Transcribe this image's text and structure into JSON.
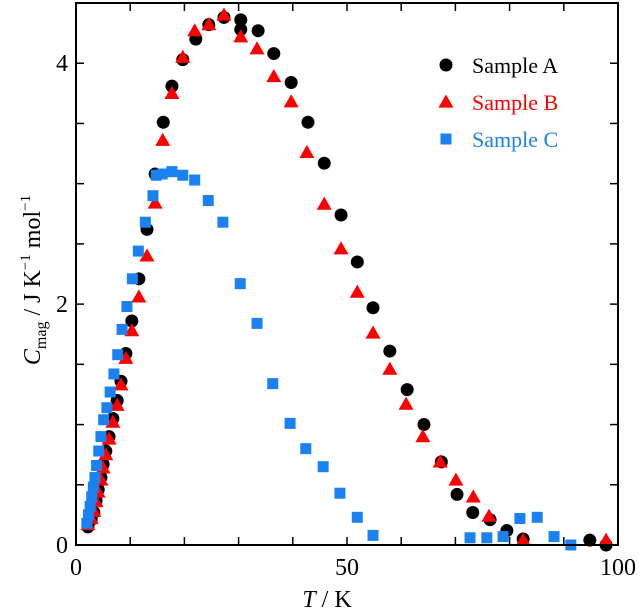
{
  "chart_data": {
    "type": "scatter",
    "title": "",
    "xlabel": {
      "italic": "T",
      "rest": " / K"
    },
    "ylabel": {
      "symbol": "C",
      "subscript": "mag",
      "unit_main": " / J K",
      "sup1": "−1",
      "unit_mol": " mol",
      "sup2": "−1"
    },
    "xlim": [
      0,
      100
    ],
    "ylim": [
      0,
      4.5
    ],
    "x_ticks": [
      0,
      50,
      100
    ],
    "x_minor_step": 10,
    "y_ticks": [
      0,
      2,
      4
    ],
    "y_minor_step": 0.5,
    "grid": false,
    "legend_position": "top-right",
    "series": [
      {
        "name": "Sample A",
        "marker": "circle",
        "color": "#000000",
        "points": [
          [
            2.2,
            0.15
          ],
          [
            2.8,
            0.21
          ],
          [
            3.3,
            0.27
          ],
          [
            3.7,
            0.37
          ],
          [
            4.1,
            0.46
          ],
          [
            4.6,
            0.56
          ],
          [
            5.0,
            0.67
          ],
          [
            5.5,
            0.78
          ],
          [
            6.1,
            0.9
          ],
          [
            6.8,
            1.05
          ],
          [
            7.6,
            1.2
          ],
          [
            8.3,
            1.36
          ],
          [
            9.2,
            1.59
          ],
          [
            10.3,
            1.86
          ],
          [
            11.6,
            2.21
          ],
          [
            13.1,
            2.62
          ],
          [
            14.6,
            3.08
          ],
          [
            16.1,
            3.51
          ],
          [
            17.7,
            3.81
          ],
          [
            19.7,
            4.03
          ],
          [
            22.1,
            4.2
          ],
          [
            24.5,
            4.32
          ],
          [
            27.3,
            4.38
          ],
          [
            30.4,
            4.36
          ],
          [
            30.4,
            4.28
          ],
          [
            33.6,
            4.27
          ],
          [
            36.5,
            4.08
          ],
          [
            39.7,
            3.84
          ],
          [
            42.8,
            3.51
          ],
          [
            45.8,
            3.17
          ],
          [
            48.9,
            2.74
          ],
          [
            51.9,
            2.35
          ],
          [
            54.8,
            1.97
          ],
          [
            57.9,
            1.61
          ],
          [
            61.1,
            1.29
          ],
          [
            64.2,
            1.0
          ],
          [
            67.4,
            0.69
          ],
          [
            70.3,
            0.42
          ],
          [
            73.2,
            0.27
          ],
          [
            76.4,
            0.21
          ],
          [
            79.5,
            0.12
          ],
          [
            82.5,
            0.05
          ],
          [
            94.8,
            0.04
          ],
          [
            97.8,
            0.0
          ]
        ]
      },
      {
        "name": "Sample B",
        "marker": "triangle",
        "color": "#ff0000",
        "points": [
          [
            2.2,
            0.17
          ],
          [
            2.8,
            0.22
          ],
          [
            3.3,
            0.28
          ],
          [
            3.7,
            0.36
          ],
          [
            4.1,
            0.44
          ],
          [
            4.6,
            0.54
          ],
          [
            5.0,
            0.64
          ],
          [
            5.5,
            0.75
          ],
          [
            6.1,
            0.88
          ],
          [
            6.8,
            1.02
          ],
          [
            7.6,
            1.16
          ],
          [
            8.3,
            1.33
          ],
          [
            9.2,
            1.55
          ],
          [
            10.3,
            1.78
          ],
          [
            11.6,
            2.06
          ],
          [
            13.1,
            2.4
          ],
          [
            14.6,
            2.84
          ],
          [
            16.0,
            3.36
          ],
          [
            17.7,
            3.75
          ],
          [
            19.7,
            4.05
          ],
          [
            21.9,
            4.27
          ],
          [
            24.5,
            4.32
          ],
          [
            27.3,
            4.4
          ],
          [
            30.4,
            4.22
          ],
          [
            33.4,
            4.12
          ],
          [
            36.5,
            3.89
          ],
          [
            39.7,
            3.68
          ],
          [
            42.6,
            3.26
          ],
          [
            45.8,
            2.83
          ],
          [
            48.9,
            2.46
          ],
          [
            51.9,
            2.1
          ],
          [
            54.8,
            1.76
          ],
          [
            57.9,
            1.46
          ],
          [
            60.9,
            1.17
          ],
          [
            64.0,
            0.9
          ],
          [
            67.2,
            0.69
          ],
          [
            70.1,
            0.54
          ],
          [
            73.3,
            0.4
          ],
          [
            76.2,
            0.24
          ],
          [
            82.5,
            0.04
          ],
          [
            97.8,
            0.04
          ]
        ]
      },
      {
        "name": "Sample C",
        "marker": "square",
        "color": "#1a82f0",
        "points": [
          [
            2.0,
            0.18
          ],
          [
            2.3,
            0.25
          ],
          [
            2.6,
            0.32
          ],
          [
            2.9,
            0.4
          ],
          [
            3.2,
            0.48
          ],
          [
            3.5,
            0.56
          ],
          [
            3.8,
            0.66
          ],
          [
            4.2,
            0.78
          ],
          [
            4.6,
            0.9
          ],
          [
            5.1,
            1.04
          ],
          [
            5.7,
            1.14
          ],
          [
            6.3,
            1.27
          ],
          [
            7.0,
            1.42
          ],
          [
            7.7,
            1.58
          ],
          [
            8.5,
            1.79
          ],
          [
            9.4,
            1.98
          ],
          [
            10.4,
            2.21
          ],
          [
            11.5,
            2.44
          ],
          [
            12.8,
            2.68
          ],
          [
            14.2,
            2.9
          ],
          [
            14.8,
            3.07
          ],
          [
            15.9,
            3.08
          ],
          [
            17.7,
            3.1
          ],
          [
            19.7,
            3.07
          ],
          [
            21.9,
            3.03
          ],
          [
            24.4,
            2.86
          ],
          [
            27.1,
            2.68
          ],
          [
            30.3,
            2.17
          ],
          [
            33.4,
            1.84
          ],
          [
            36.3,
            1.34
          ],
          [
            39.5,
            1.01
          ],
          [
            42.4,
            0.8
          ],
          [
            45.6,
            0.65
          ],
          [
            48.7,
            0.43
          ],
          [
            51.9,
            0.23
          ],
          [
            54.8,
            0.08
          ],
          [
            72.7,
            0.06
          ],
          [
            75.8,
            0.06
          ],
          [
            78.8,
            0.07
          ],
          [
            81.9,
            0.22
          ],
          [
            85.1,
            0.23
          ],
          [
            88.2,
            0.07
          ],
          [
            91.3,
            0.0
          ]
        ]
      }
    ]
  }
}
